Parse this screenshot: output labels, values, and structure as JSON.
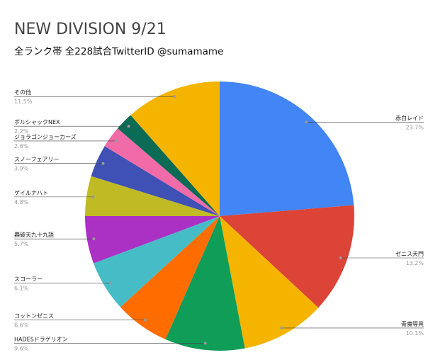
{
  "chart_data": {
    "type": "pie",
    "title": "NEW DIVISION 9/21",
    "subtitle": "全ランク帯 全228試合TwitterID @sumamame",
    "categories": [
      "赤白レイド",
      "ゼニス天門",
      "青魔導具",
      "HADESドラゲリオン",
      "コットンゼニス",
      "スコーラー",
      "轟破天九十九語",
      "ゲイルナハト",
      "スノーフェアリー",
      "ジョラゴンジョーカーズ",
      "ボルシャックNEX",
      "その他"
    ],
    "values": [
      23.7,
      13.2,
      10.1,
      9.6,
      6.6,
      6.1,
      5.7,
      4.8,
      3.9,
      2.6,
      2.2,
      11.5
    ],
    "value_labels": [
      "23.7%",
      "13.2%",
      "10.1%",
      "9.6%",
      "6.6%",
      "6.1%",
      "5.7%",
      "4.8%",
      "3.9%",
      "2.6%",
      "2.2%",
      "11.5%"
    ],
    "colors": [
      "#4285f4",
      "#db4437",
      "#f4b400",
      "#0f9d58",
      "#ff6d01",
      "#46bdc6",
      "#ab30c4",
      "#c0ba24",
      "#3f51b5",
      "#f06ba8",
      "#0b6b55",
      "#f4b400"
    ]
  }
}
